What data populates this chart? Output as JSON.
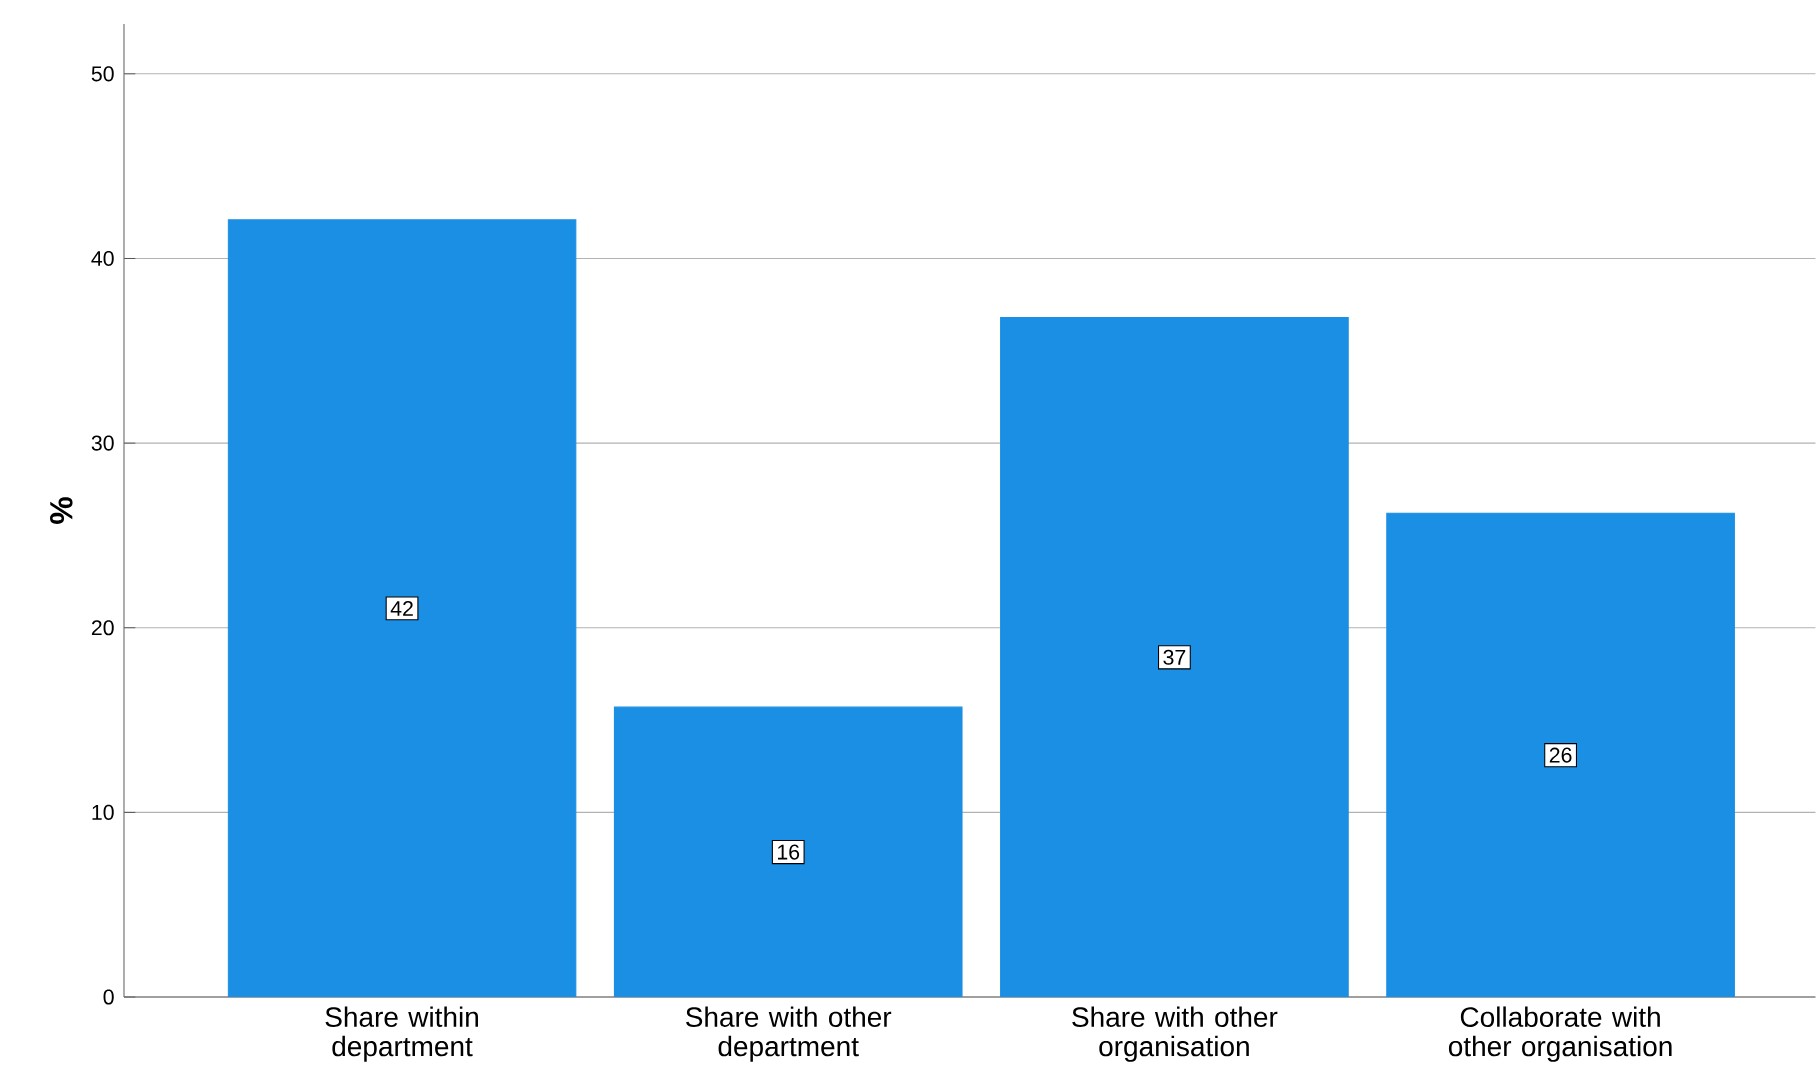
{
  "chart_data": {
    "type": "bar",
    "ylabel": "%",
    "categories": [
      "Share within department",
      "Share with other department",
      "Share with other organisation",
      "Collaborate with other organisation"
    ],
    "values": [
      42.1,
      15.7,
      36.8,
      26.2
    ],
    "value_labels": [
      "42",
      "16",
      "37",
      "26"
    ],
    "color": "#1a8fe3",
    "ylim": [
      0,
      52.7
    ],
    "yticks": [
      0,
      10,
      20,
      30,
      40,
      50
    ],
    "grid": "y"
  }
}
